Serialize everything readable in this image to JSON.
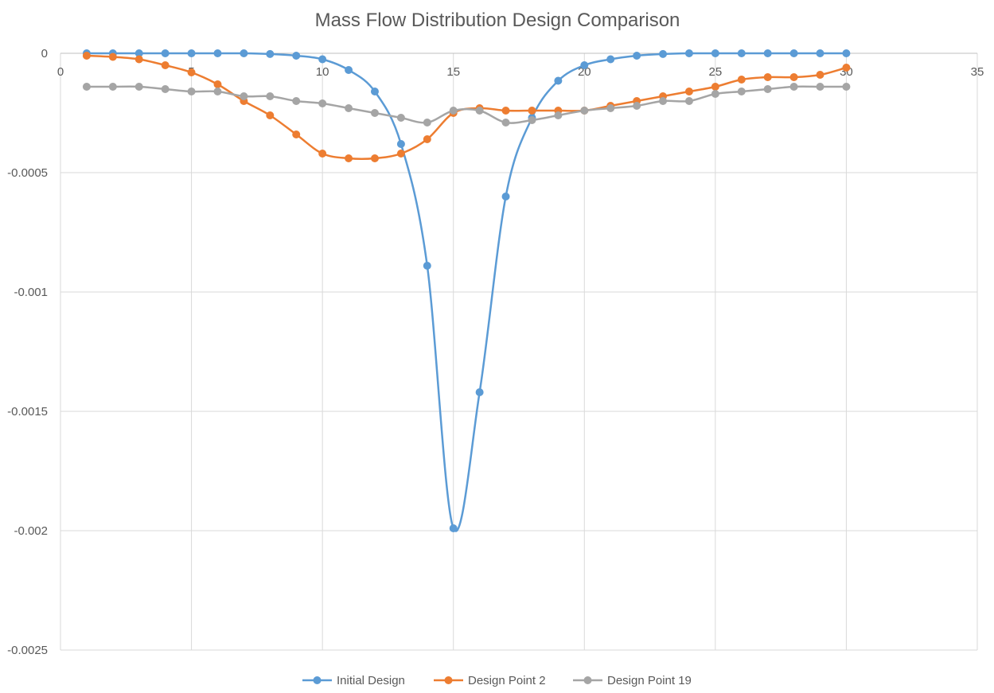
{
  "chart_data": {
    "type": "scatter",
    "title": "Mass Flow Distribution Design Comparison",
    "xlabel": "",
    "ylabel": "",
    "xlim": [
      0,
      35
    ],
    "ylim": [
      -0.0025,
      0
    ],
    "x_ticks": [
      "0",
      "5",
      "10",
      "15",
      "20",
      "25",
      "30",
      "35"
    ],
    "y_ticks": [
      "0",
      "-0.0005",
      "-0.001",
      "-0.0015",
      "-0.002",
      "-0.0025"
    ],
    "grid": true,
    "legend_position": "bottom",
    "smooth_lines": true,
    "series": [
      {
        "name": "Initial Design",
        "color": "#5b9bd5",
        "x": [
          1,
          2,
          3,
          4,
          5,
          6,
          7,
          8,
          9,
          10,
          11,
          12,
          13,
          14,
          15,
          16,
          17,
          18,
          19,
          20,
          21,
          22,
          23,
          24,
          25,
          26,
          27,
          28,
          29,
          30
        ],
        "y": [
          0,
          0,
          0,
          0,
          0,
          0,
          0,
          -3e-06,
          -1e-05,
          -2.5e-05,
          -7e-05,
          -0.00016,
          -0.00038,
          -0.00089,
          -0.00199,
          -0.00142,
          -0.0006,
          -0.00027,
          -0.000115,
          -5e-05,
          -2.5e-05,
          -1e-05,
          -3e-06,
          0,
          0,
          0,
          0,
          0,
          0,
          0
        ]
      },
      {
        "name": "Design Point 2",
        "color": "#ed7d31",
        "x": [
          1,
          2,
          3,
          4,
          5,
          6,
          7,
          8,
          9,
          10,
          11,
          12,
          13,
          14,
          15,
          16,
          17,
          18,
          19,
          20,
          21,
          22,
          23,
          24,
          25,
          26,
          27,
          28,
          29,
          30
        ],
        "y": [
          -1e-05,
          -1.5e-05,
          -2.5e-05,
          -5e-05,
          -8e-05,
          -0.00013,
          -0.0002,
          -0.00026,
          -0.00034,
          -0.00042,
          -0.00044,
          -0.00044,
          -0.00042,
          -0.00036,
          -0.00025,
          -0.00023,
          -0.00024,
          -0.00024,
          -0.00024,
          -0.00024,
          -0.00022,
          -0.0002,
          -0.00018,
          -0.00016,
          -0.00014,
          -0.00011,
          -0.0001,
          -0.0001,
          -9e-05,
          -6e-05
        ]
      },
      {
        "name": "Design Point 19",
        "color": "#a5a5a5",
        "x": [
          1,
          2,
          3,
          4,
          5,
          6,
          7,
          8,
          9,
          10,
          11,
          12,
          13,
          14,
          15,
          16,
          17,
          18,
          19,
          20,
          21,
          22,
          23,
          24,
          25,
          26,
          27,
          28,
          29,
          30
        ],
        "y": [
          -0.00014,
          -0.00014,
          -0.00014,
          -0.00015,
          -0.00016,
          -0.00016,
          -0.00018,
          -0.00018,
          -0.0002,
          -0.00021,
          -0.00023,
          -0.00025,
          -0.00027,
          -0.00029,
          -0.00024,
          -0.00024,
          -0.00029,
          -0.00028,
          -0.00026,
          -0.00024,
          -0.00023,
          -0.00022,
          -0.0002,
          -0.0002,
          -0.00017,
          -0.00016,
          -0.00015,
          -0.00014,
          -0.00014,
          -0.00014
        ]
      }
    ]
  }
}
